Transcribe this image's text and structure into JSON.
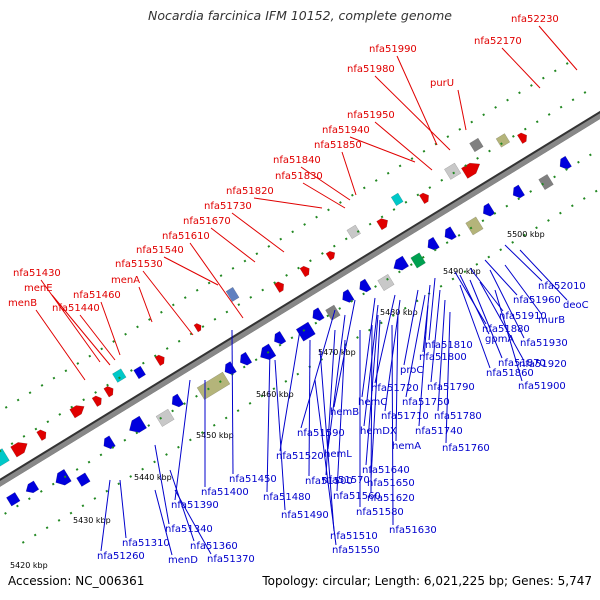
{
  "header": {
    "title": "Nocardia farcinica IFM 10152, complete genome"
  },
  "footer": {
    "accession": "Accession: NC_006361",
    "summary": "Topology: circular; Length: 6,021,225 bp; Genes: 5,747"
  },
  "colors": {
    "forward_label": "#e00000",
    "reverse_label": "#0000cc",
    "backbone": "#888888",
    "tick": "#228822"
  },
  "scale_labels": [
    "5420 kbp",
    "5430 kbp",
    "5440 kbp",
    "5450 kbp",
    "5460 kbp",
    "5470 kbp",
    "5480 kbp",
    "5490 kbp",
    "5500 kbp"
  ],
  "forward_genes": [
    "nfa52230",
    "nfa51990",
    "nfa52170",
    "nfa51980",
    "purU",
    "nfa51950",
    "nfa51940",
    "nfa51850",
    "nfa51840",
    "nfa51830",
    "nfa51820",
    "nfa51730",
    "nfa51670",
    "nfa51610",
    "nfa51540",
    "nfa51530",
    "menA",
    "nfa51430",
    "menE",
    "nfa51460",
    "menB",
    "nfa51440"
  ],
  "reverse_genes": [
    "nfa52010",
    "deoC",
    "nfa51960",
    "murB",
    "nfa51910",
    "nfa51930",
    "nfa51880",
    "gpmA",
    "nfa51810",
    "nfa51870",
    "nfa51920",
    "nfa51800",
    "nfa51860",
    "proC",
    "nfa51790",
    "nfa51900",
    "nfa51720",
    "nfa51750",
    "hemC",
    "nfa51780",
    "nfa51710",
    "hemB",
    "nfa51740",
    "hemDX",
    "nfa51590",
    "hemA",
    "nfa51760",
    "hemL",
    "nfa51520",
    "nfa51640",
    "nfa51450",
    "nfa51570",
    "nfa51650",
    "nfa51400",
    "nfa51500",
    "nfa51560",
    "nfa51620",
    "nfa51390",
    "nfa51480",
    "nfa51580",
    "nfa51490",
    "nfa51630",
    "nfa51340",
    "nfa51510",
    "nfa51360",
    "nfa51310",
    "nfa51550",
    "nfa51260",
    "menD",
    "nfa51370"
  ]
}
